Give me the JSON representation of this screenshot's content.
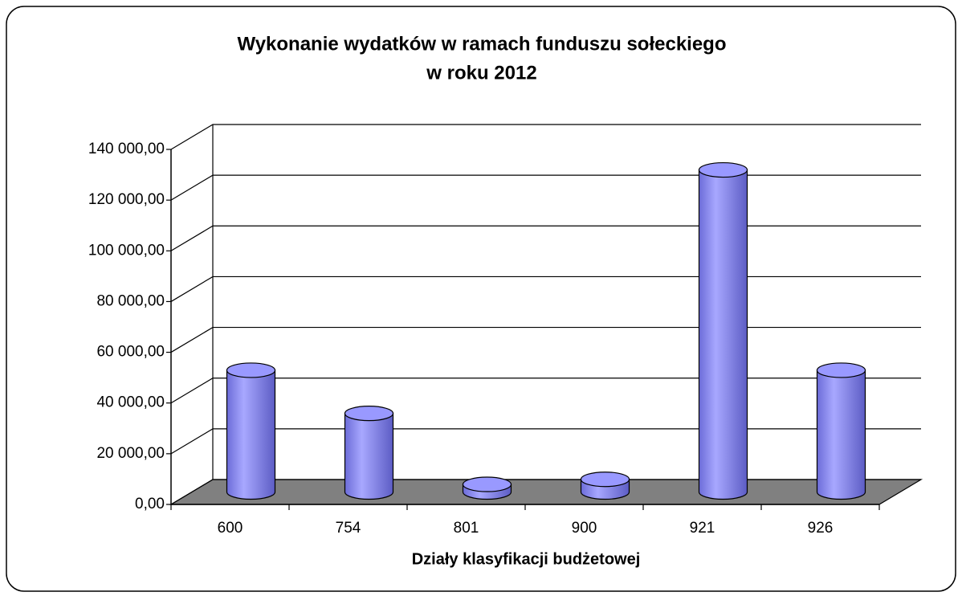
{
  "chart_data": {
    "type": "bar",
    "title": [
      "Wykonanie wydatków w ramach funduszu sołeckiego",
      "w roku 2012"
    ],
    "x_label": "Działy klasyfikacji budżetowej",
    "categories": [
      "600",
      "754",
      "801",
      "900",
      "921",
      "926"
    ],
    "values": [
      48000,
      31000,
      3000,
      5000,
      127000,
      48000
    ],
    "color": "#9999ff",
    "ylim": [
      0,
      140000
    ],
    "yticks": [
      {
        "value": 0,
        "label": "0,00"
      },
      {
        "value": 20000,
        "label": "20 000,00"
      },
      {
        "value": 40000,
        "label": "40 000,00"
      },
      {
        "value": 60000,
        "label": "60 000,00"
      },
      {
        "value": 80000,
        "label": "80 000,00"
      },
      {
        "value": 100000,
        "label": "100 000,00"
      },
      {
        "value": 120000,
        "label": "120 000,00"
      },
      {
        "value": 140000,
        "label": "140 000,00"
      }
    ],
    "grid": true
  }
}
